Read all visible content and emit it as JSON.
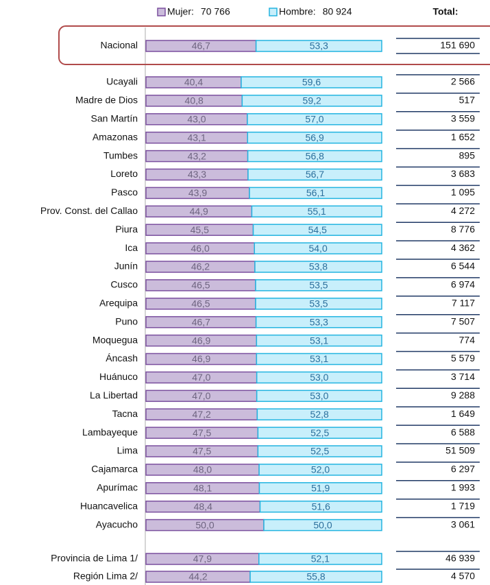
{
  "chart_data": {
    "type": "stacked-bar-horizontal",
    "categories": [
      "Nacional",
      "Ucayali",
      "Madre de Dios",
      "San Martín",
      "Amazonas",
      "Tumbes",
      "Loreto",
      "Pasco",
      "Prov. Const. del Callao",
      "Piura",
      "Ica",
      "Junín",
      "Cusco",
      "Arequipa",
      "Puno",
      "Moquegua",
      "Áncash",
      "Huánuco",
      "La Libertad",
      "Tacna",
      "Lambayeque",
      "Lima",
      "Cajamarca",
      "Apurímac",
      "Huancavelica",
      "Ayacucho",
      "Provincia de Lima 1/",
      "Región Lima 2/"
    ],
    "xlim": [
      0,
      100
    ],
    "series": [
      {
        "name": "Mujer:",
        "total": {
          "value": 70766,
          "label": "70 766"
        },
        "color": "#cbbcdb",
        "stroke": "#7a4f9e",
        "label_color": "#6e6480",
        "values": [
          46.7,
          40.4,
          40.8,
          43.0,
          43.1,
          43.2,
          43.3,
          43.9,
          44.9,
          45.5,
          46.0,
          46.2,
          46.5,
          46.5,
          46.7,
          46.9,
          46.9,
          47.0,
          47.0,
          47.2,
          47.5,
          47.5,
          48.0,
          48.1,
          48.4,
          50.0,
          47.9,
          44.2
        ],
        "value_labels": [
          "46,7",
          "40,4",
          "40,8",
          "43,0",
          "43,1",
          "43,2",
          "43,3",
          "43,9",
          "44,9",
          "45,5",
          "46,0",
          "46,2",
          "46,5",
          "46,5",
          "46,7",
          "46,9",
          "46,9",
          "47,0",
          "47,0",
          "47,2",
          "47,5",
          "47,5",
          "48,0",
          "48,1",
          "48,4",
          "50,0",
          "47,9",
          "44,2"
        ]
      },
      {
        "name": "Hombre:",
        "total": {
          "value": 80924,
          "label": "80 924"
        },
        "color": "#c8effb",
        "stroke": "#22b4e0",
        "label_color": "#2b6f9c",
        "values": [
          53.3,
          59.6,
          59.2,
          57.0,
          56.9,
          56.8,
          56.7,
          56.1,
          55.1,
          54.5,
          54.0,
          53.8,
          53.5,
          53.5,
          53.3,
          53.1,
          53.1,
          53.0,
          53.0,
          52.8,
          52.5,
          52.5,
          52.0,
          51.9,
          51.6,
          50.0,
          52.1,
          55.8
        ],
        "value_labels": [
          "53,3",
          "59,6",
          "59,2",
          "57,0",
          "56,9",
          "56,8",
          "56,7",
          "56,1",
          "55,1",
          "54,5",
          "54,0",
          "53,8",
          "53,5",
          "53,5",
          "53,3",
          "53,1",
          "53,1",
          "53,0",
          "53,0",
          "52,8",
          "52,5",
          "52,5",
          "52,0",
          "51,9",
          "51,6",
          "50,0",
          "52,1",
          "55,8"
        ]
      }
    ],
    "totals_title": "Total:",
    "totals": [
      {
        "value": 151690,
        "label": "151 690"
      },
      {
        "value": 2566,
        "label": "2 566"
      },
      {
        "value": 517,
        "label": "517"
      },
      {
        "value": 3559,
        "label": "3 559"
      },
      {
        "value": 1652,
        "label": "1 652"
      },
      {
        "value": 895,
        "label": "895"
      },
      {
        "value": 3683,
        "label": "3 683"
      },
      {
        "value": 1095,
        "label": "1 095"
      },
      {
        "value": 4272,
        "label": "4 272"
      },
      {
        "value": 8776,
        "label": "8 776"
      },
      {
        "value": 4362,
        "label": "4 362"
      },
      {
        "value": 6544,
        "label": "6 544"
      },
      {
        "value": 6974,
        "label": "6 974"
      },
      {
        "value": 7117,
        "label": "7 117"
      },
      {
        "value": 7507,
        "label": "7 507"
      },
      {
        "value": 774,
        "label": "774"
      },
      {
        "value": 5579,
        "label": "5 579"
      },
      {
        "value": 3714,
        "label": "3 714"
      },
      {
        "value": 9288,
        "label": "9 288"
      },
      {
        "value": 1649,
        "label": "1 649"
      },
      {
        "value": 6588,
        "label": "6 588"
      },
      {
        "value": 51509,
        "label": "51 509"
      },
      {
        "value": 6297,
        "label": "6 297"
      },
      {
        "value": 1993,
        "label": "1 993"
      },
      {
        "value": 1719,
        "label": "1 719"
      },
      {
        "value": 3061,
        "label": "3 061"
      },
      {
        "value": 46939,
        "label": "46 939"
      },
      {
        "value": 4570,
        "label": "4 570"
      }
    ]
  }
}
